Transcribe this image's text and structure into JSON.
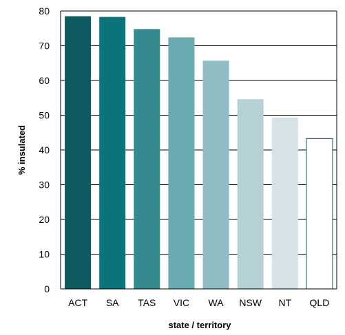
{
  "chart_data": {
    "type": "bar",
    "categories": [
      "ACT",
      "SA",
      "TAS",
      "VIC",
      "WA",
      "NSW",
      "NT",
      "QLD"
    ],
    "values": [
      78.5,
      78.3,
      74.8,
      72.4,
      65.7,
      54.6,
      49.3,
      43.3
    ],
    "colors": [
      "#0d5a60",
      "#0b737a",
      "#348a8f",
      "#6aaab1",
      "#90bcc4",
      "#b5d1d6",
      "#d5e3e6",
      "#ffffff"
    ],
    "bar_outline_color": "#0d5a60",
    "xlabel": "state / territory",
    "ylabel": "% insulated",
    "ylim": [
      0,
      80
    ],
    "yticks": [
      0,
      10,
      20,
      30,
      40,
      50,
      60,
      70,
      80
    ],
    "grid": true
  }
}
